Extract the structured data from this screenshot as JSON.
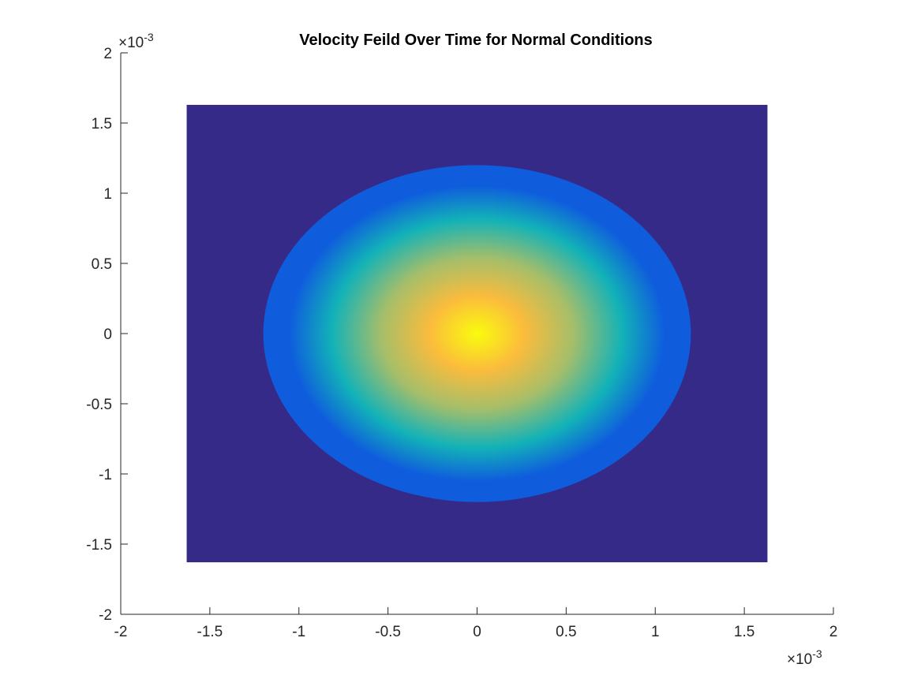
{
  "chart_data": {
    "type": "heatmap",
    "title": "Velocity Feild Over Time for Normal Conditions",
    "xlabel": "",
    "ylabel": "",
    "xlim": [
      -2,
      2
    ],
    "ylim": [
      -2,
      2
    ],
    "x_ticks": [
      -2,
      -1.5,
      -1,
      -0.5,
      0,
      0.5,
      1,
      1.5,
      2
    ],
    "y_ticks": [
      -2,
      -1.5,
      -1,
      -0.5,
      0,
      0.5,
      1,
      1.5,
      2
    ],
    "x_tick_labels": [
      "-2",
      "-1.5",
      "-1",
      "-0.5",
      "0",
      "0.5",
      "1",
      "1.5",
      "2"
    ],
    "y_tick_labels": [
      "-2",
      "-1.5",
      "-1",
      "-0.5",
      "0",
      "0.5",
      "1",
      "1.5",
      "2"
    ],
    "x_exponent": {
      "base": "×10",
      "power": "-3"
    },
    "y_exponent": {
      "base": "×10",
      "power": "-3"
    },
    "grid": false,
    "colormap": "parula",
    "field_extent": {
      "x": [
        -1.63,
        1.63
      ],
      "y": [
        -1.63,
        1.63
      ]
    },
    "profile_center": [
      0,
      0
    ],
    "profile_radius": {
      "x": 1.2,
      "y": 1.2
    },
    "colors": {
      "background": "#352a87",
      "low": "#0f5cdd",
      "mid": "#12b2b8",
      "mid_high": "#a5be6a",
      "high": "#fbbc3c",
      "peak": "#f9fb0e"
    }
  }
}
